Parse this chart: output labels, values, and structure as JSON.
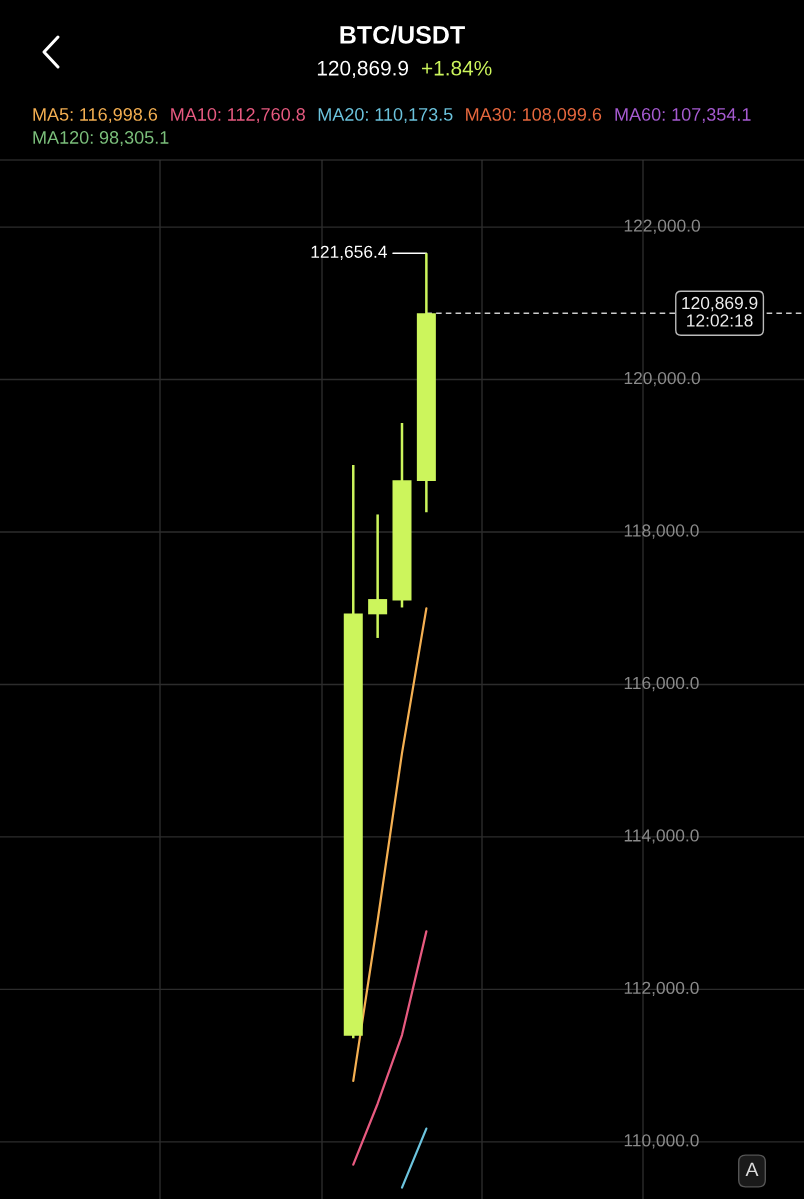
{
  "chart_data": {
    "type": "candlestick",
    "title": "BTC/USDT",
    "subtitle": "120,869.9",
    "annotations": [
      "+1.84%",
      "121,656.4",
      "A"
    ],
    "categories": [
      null,
      null,
      null,
      null,
      null,
      null,
      null,
      null,
      null,
      null,
      null,
      null,
      null,
      null,
      null,
      null,
      null,
      null,
      null,
      null,
      null,
      null,
      null,
      null,
      null,
      null,
      null,
      null,
      null,
      null,
      null,
      null,
      null
    ],
    "ohlc": [
      null,
      null,
      null,
      null,
      null,
      null,
      null,
      null,
      null,
      null,
      null,
      null,
      null,
      null,
      [
        111390,
        118880,
        111360,
        116930
      ],
      [
        116920,
        118230,
        116610,
        117120
      ],
      [
        117100,
        119430,
        117010,
        118680
      ],
      [
        118670,
        121656.4,
        118260,
        120869.9
      ],
      null,
      null,
      null,
      null,
      null,
      null,
      null,
      null,
      null,
      null,
      null,
      null,
      null,
      null,
      null
    ],
    "color": "#ccf55c",
    "series": [
      {
        "type": "line",
        "name": "MA5: 116,998.6",
        "color": "#f5b052",
        "values": [
          null,
          null,
          null,
          null,
          null,
          null,
          null,
          null,
          null,
          null,
          null,
          null,
          null,
          null,
          110800,
          112900,
          115100,
          116998.6,
          null,
          null,
          null,
          null,
          null,
          null,
          null,
          null,
          null,
          null,
          null,
          null,
          null,
          null,
          null
        ]
      },
      {
        "type": "line",
        "name": "MA10: 112,760.8",
        "color": "#e85a80",
        "values": [
          null,
          null,
          null,
          null,
          null,
          null,
          null,
          null,
          null,
          null,
          null,
          null,
          null,
          null,
          109700,
          110500,
          111400,
          112760.8,
          null,
          null,
          null,
          null,
          null,
          null,
          null,
          null,
          null,
          null,
          null,
          null,
          null,
          null,
          null
        ]
      },
      {
        "type": "line",
        "name": "MA20: 110,173.5",
        "color": "#6cc4de",
        "values": [
          null,
          null,
          null,
          null,
          null,
          null,
          null,
          null,
          null,
          null,
          null,
          null,
          null,
          null,
          null,
          null,
          109400,
          110173.5,
          null,
          null,
          null,
          null,
          null,
          null,
          null,
          null,
          null,
          null,
          null,
          null,
          null,
          null,
          null
        ]
      },
      {
        "type": "line",
        "name": "MA30: 108,099.6",
        "color": "#e8683e",
        "values": [
          null,
          null,
          null,
          null,
          null,
          null,
          null,
          null,
          null,
          null,
          null,
          null,
          null,
          null,
          null,
          null,
          null,
          null,
          null,
          null,
          null,
          null,
          null,
          null,
          null,
          null,
          null,
          null,
          null,
          null,
          null,
          null,
          null
        ]
      },
      {
        "type": "line",
        "name": "MA60: 107,354.1",
        "color": "#a75bd2",
        "values": [
          null,
          null,
          null,
          null,
          null,
          null,
          null,
          null,
          null,
          null,
          null,
          null,
          null,
          null,
          null,
          null,
          null,
          null,
          null,
          null,
          null,
          null,
          null,
          null,
          null,
          null,
          null,
          null,
          null,
          null,
          null,
          null,
          null
        ]
      },
      {
        "type": "line",
        "name": "MA120: 98,305.1",
        "color": "#7cc07c",
        "values": [
          null,
          null,
          null,
          null,
          null,
          null,
          null,
          null,
          null,
          null,
          null,
          null,
          null,
          null,
          null,
          null,
          null,
          null,
          null,
          null,
          null,
          null,
          null,
          null,
          null,
          null,
          null,
          null,
          null,
          null,
          null,
          null,
          null
        ]
      }
    ],
    "ylim": [
      109250,
      122880
    ],
    "yticks": [
      {
        "value": 110000,
        "label": "110,000.0"
      },
      {
        "value": 112000,
        "label": "112,000.0"
      },
      {
        "value": 114000,
        "label": "114,000.0"
      },
      {
        "value": 116000,
        "label": "116,000.0"
      },
      {
        "value": 118000,
        "label": "118,000.0"
      },
      {
        "value": 120000,
        "label": "120,000.0"
      },
      {
        "value": 122000,
        "label": "122,000.0"
      }
    ],
    "grid": true,
    "tick_labels": "y",
    "ref_lines": [
      {
        "axis": "y",
        "value": 120869.9,
        "label": "120,869.9\n12:02:18",
        "line_style": "dashed",
        "color": "#cccccc"
      }
    ]
  }
}
